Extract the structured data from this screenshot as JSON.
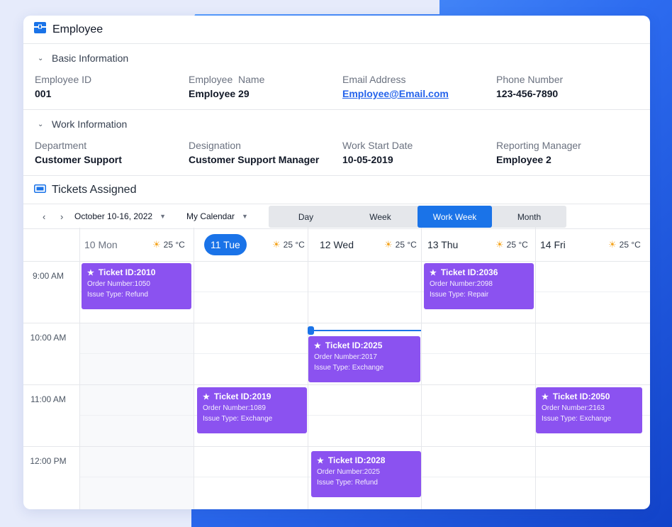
{
  "header": {
    "title": "Employee"
  },
  "basic": {
    "section_title": "Basic Information",
    "fields": [
      {
        "label": "Employee ID",
        "value": "001"
      },
      {
        "label": "Employee  Name",
        "value": "Employee 29"
      },
      {
        "label": "Email Address",
        "value": "Employee@Email.com"
      },
      {
        "label": "Phone Number",
        "value": "123-456-7890"
      }
    ]
  },
  "work": {
    "section_title": "Work Information",
    "fields": [
      {
        "label": "Department",
        "value": "Customer Support"
      },
      {
        "label": "Designation",
        "value": "Customer Support Manager"
      },
      {
        "label": "Work Start Date",
        "value": "10-05-2019"
      },
      {
        "label": "Reporting Manager",
        "value": "Employee 2"
      }
    ]
  },
  "tickets": {
    "title": "Tickets Assigned",
    "date_range": "October 10-16, 2022",
    "calendar": "My Calendar",
    "views": [
      "Day",
      "Week",
      "Work Week",
      "Month"
    ],
    "active_view": "Work Week",
    "days": [
      {
        "label": "10 Mon",
        "weather": "25 °C"
      },
      {
        "label": "11 Tue",
        "weather": "25 °C"
      },
      {
        "label": "12 Wed",
        "weather": "25 °C"
      },
      {
        "label": "13 Thu",
        "weather": "25 °C"
      },
      {
        "label": "14 Fri",
        "weather": "25 °C"
      }
    ],
    "times": [
      "9:00 AM",
      "10:00 AM",
      "11:00 AM",
      "12:00 PM"
    ],
    "events": [
      {
        "title": "Ticket ID:2010",
        "order": "Order Number:1050",
        "issue": "Issue Type: Refund"
      },
      {
        "title": "Ticket ID:2036",
        "order": "Order Number:2098",
        "issue": "Issue Type: Repair"
      },
      {
        "title": "Ticket ID:2025",
        "order": "Order Number:2017",
        "issue": "Issue Type: Exchange"
      },
      {
        "title": "Ticket ID:2019",
        "order": "Order Number:1089",
        "issue": "Issue Type: Exchange"
      },
      {
        "title": "Ticket ID:2050",
        "order": "Order Number:2163",
        "issue": "Issue Type: Exchange"
      },
      {
        "title": "Ticket ID:2028",
        "order": "Order Number:2025",
        "issue": "Issue Type: Refund"
      }
    ]
  },
  "colors": {
    "accent": "#1a73e8",
    "event": "#8b52f0"
  },
  "icons": [
    "employee-box-icon",
    "chevron-down-icon",
    "ticket-icon",
    "chevron-left-icon",
    "chevron-right-icon",
    "sun-icon",
    "star-icon"
  ]
}
